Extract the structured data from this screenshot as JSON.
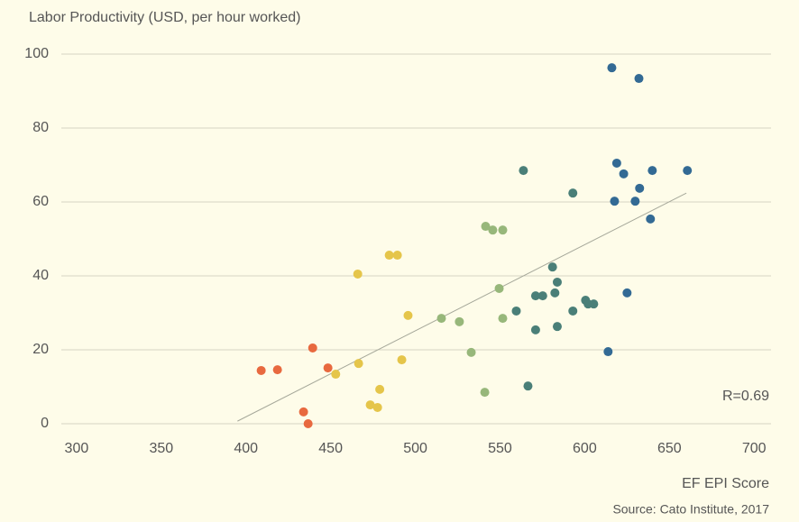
{
  "chart_data": {
    "type": "scatter",
    "y_label": "Labor Productivity (USD, per hour worked)",
    "x_label": "EF EPI Score",
    "source": "Source: Cato Institute, 2017",
    "annotation": "R=0.69",
    "xlim": [
      291,
      710
    ],
    "xticks": [
      300,
      350,
      400,
      450,
      500,
      550,
      600,
      650,
      700
    ],
    "ylim": [
      0,
      100
    ],
    "yticks": [
      0,
      20,
      40,
      60,
      80,
      100
    ],
    "grid": true,
    "series": [
      {
        "color": "#e8693f",
        "x": [
          409,
          418.6,
          439.4,
          448.4,
          434,
          436.7
        ],
        "y": [
          14.4,
          14.6,
          20.5,
          15.1,
          3.2,
          0
        ]
      },
      {
        "color": "#e5c54a",
        "x": [
          466,
          484.6,
          489.4,
          495.7,
          466.5,
          453,
          492,
          479,
          473.4,
          477.7
        ],
        "y": [
          40.5,
          45.6,
          45.6,
          29.3,
          16.3,
          13.4,
          17.3,
          9.3,
          5.1,
          4.4
        ]
      },
      {
        "color": "#97b77a",
        "x": [
          541.5,
          545.7,
          551.6,
          549.5,
          515.4,
          526,
          551.6,
          533,
          541
        ],
        "y": [
          53.4,
          52.4,
          52.4,
          36.6,
          28.5,
          27.6,
          28.5,
          19.3,
          8.5
        ]
      },
      {
        "color": "#4a7f78",
        "x": [
          563.8,
          593,
          581,
          583.8,
          571,
          575.2,
          582.4,
          559.6,
          593,
          600.5,
          602,
          605.3,
          571,
          583.8,
          566.5
        ],
        "y": [
          68.5,
          62.4,
          42.4,
          38.3,
          34.6,
          34.6,
          35.4,
          30.5,
          30.5,
          33.4,
          32.4,
          32.4,
          25.4,
          26.3,
          10.2
        ]
      },
      {
        "color": "#336a94",
        "x": [
          616,
          632,
          618.9,
          623,
          639.9,
          660.6,
          632.4,
          617.6,
          629.8,
          638.8,
          625,
          613.8
        ],
        "y": [
          96.3,
          93.4,
          70.5,
          67.6,
          68.5,
          68.5,
          63.7,
          60.2,
          60.2,
          55.4,
          35.4,
          19.5
        ]
      }
    ],
    "trendline": {
      "color": "#a6a89a",
      "x": [
        395,
        660
      ],
      "y": [
        0.7,
        62.4
      ]
    }
  }
}
